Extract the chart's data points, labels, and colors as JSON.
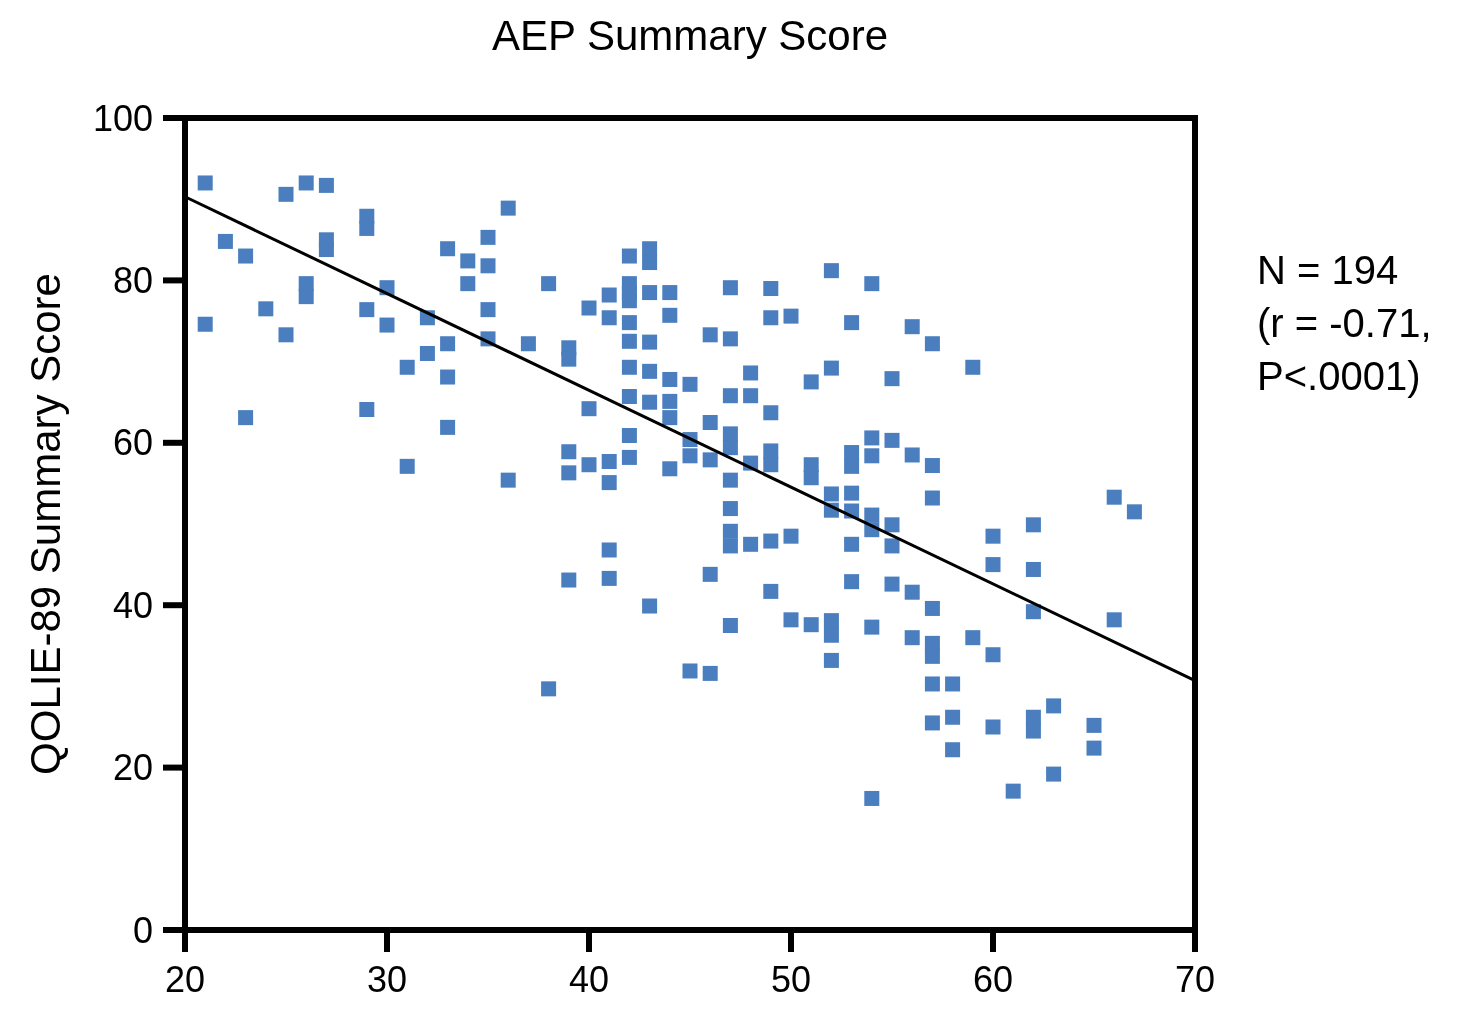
{
  "chart_data": {
    "type": "scatter",
    "title": "AEP Summary Score",
    "ylabel": "QOLIE-89 Summary Score",
    "xlim": [
      20,
      70
    ],
    "ylim": [
      0,
      100
    ],
    "xticks": [
      20,
      30,
      40,
      50,
      60,
      70
    ],
    "yticks": [
      0,
      20,
      40,
      60,
      80,
      100
    ],
    "grid": false,
    "annotations": [
      "N = 194",
      "(r = -0.71,",
      "P<.0001)"
    ],
    "series": [
      {
        "marker": "square",
        "color": "#4a7ebf",
        "x": [
          21,
          21,
          22,
          23,
          23,
          24,
          25,
          25,
          26,
          26,
          26,
          27,
          27,
          27,
          29,
          29,
          29,
          29,
          30,
          30,
          31,
          31,
          32,
          32,
          33,
          33,
          33,
          33,
          34,
          34,
          35,
          35,
          35,
          35,
          36,
          36,
          37,
          38,
          38,
          39,
          39,
          39,
          39,
          39,
          40,
          40,
          40,
          41,
          41,
          41,
          41,
          41,
          41,
          42,
          42,
          42,
          42,
          42,
          42,
          42,
          42,
          42,
          42,
          43,
          43,
          43,
          43,
          43,
          43,
          43,
          44,
          44,
          44,
          44,
          44,
          44,
          45,
          45,
          45,
          45,
          46,
          46,
          46,
          46,
          46,
          47,
          47,
          47,
          47,
          47,
          47,
          47,
          47,
          47,
          47,
          48,
          48,
          48,
          48,
          49,
          49,
          49,
          49,
          49,
          49,
          49,
          50,
          50,
          50,
          51,
          51,
          51,
          51,
          52,
          52,
          52,
          52,
          52,
          52,
          52,
          53,
          53,
          53,
          53,
          53,
          53,
          53,
          54,
          54,
          54,
          54,
          54,
          54,
          54,
          55,
          55,
          55,
          55,
          55,
          56,
          56,
          56,
          56,
          57,
          57,
          57,
          57,
          57,
          57,
          57,
          57,
          58,
          58,
          58,
          59,
          59,
          60,
          60,
          60,
          60,
          61,
          62,
          62,
          62,
          62,
          62,
          63,
          63,
          65,
          65,
          66,
          66,
          67
        ],
        "values": [
          92.0,
          74.6,
          84.8,
          83.0,
          63.1,
          76.5,
          90.6,
          73.3,
          92.0,
          79.6,
          78.0,
          91.7,
          85.0,
          83.8,
          87.9,
          86.4,
          76.4,
          64.1,
          79.1,
          74.5,
          69.3,
          57.1,
          75.4,
          71.0,
          83.9,
          72.2,
          68.1,
          61.9,
          82.4,
          79.6,
          85.3,
          81.8,
          76.4,
          72.8,
          88.9,
          55.4,
          72.2,
          79.6,
          29.7,
          71.7,
          70.3,
          58.9,
          56.3,
          43.1,
          76.6,
          64.2,
          57.3,
          78.2,
          75.4,
          57.7,
          55.1,
          46.8,
          43.3,
          83.0,
          79.6,
          78.5,
          77.5,
          74.8,
          72.5,
          69.3,
          65.7,
          60.9,
          58.2,
          83.9,
          82.2,
          78.5,
          72.4,
          68.8,
          65.0,
          39.9,
          78.5,
          75.7,
          67.8,
          65.1,
          63.1,
          56.8,
          67.2,
          60.4,
          58.4,
          31.9,
          73.3,
          62.5,
          57.9,
          43.8,
          31.6,
          79.1,
          72.8,
          65.8,
          61.1,
          59.4,
          55.4,
          51.9,
          49.1,
          47.3,
          37.5,
          68.6,
          65.8,
          57.5,
          47.5,
          79.0,
          75.4,
          63.7,
          59.0,
          57.3,
          47.9,
          41.7,
          75.6,
          48.5,
          38.2,
          67.5,
          57.3,
          55.7,
          37.6,
          81.2,
          69.2,
          53.7,
          51.7,
          38.1,
          36.3,
          33.2,
          74.8,
          58.8,
          57.1,
          53.8,
          51.6,
          47.5,
          42.9,
          79.6,
          60.6,
          58.4,
          51.1,
          49.3,
          37.3,
          16.2,
          67.9,
          60.3,
          49.9,
          47.3,
          42.6,
          74.3,
          58.5,
          41.6,
          36.0,
          72.2,
          57.2,
          53.2,
          39.6,
          35.3,
          33.7,
          30.3,
          25.5,
          30.3,
          26.2,
          22.2,
          69.3,
          36.0,
          48.5,
          45.0,
          33.9,
          25.0,
          17.1,
          49.9,
          44.4,
          39.2,
          26.2,
          24.5,
          27.6,
          19.2,
          25.2,
          22.4,
          53.3,
          38.2,
          51.5
        ]
      },
      {
        "type": "line",
        "color": "#000000",
        "x": [
          20,
          70
        ],
        "values": [
          90.3,
          30.7
        ]
      }
    ]
  }
}
